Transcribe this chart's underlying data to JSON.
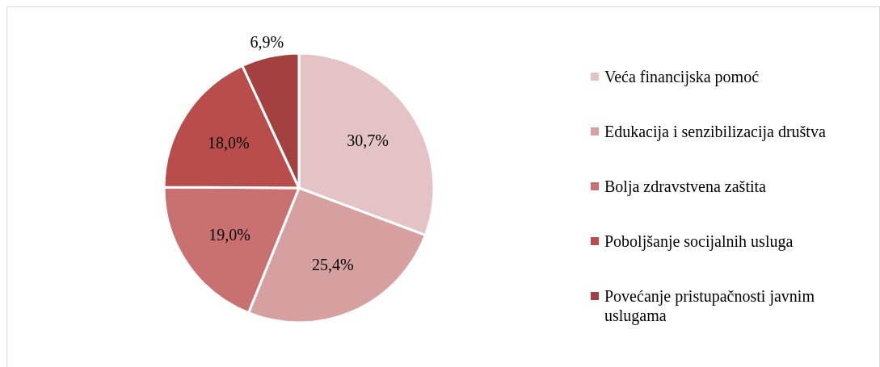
{
  "chart_data": {
    "type": "pie",
    "categories": [
      "Veća financijska pomoć",
      "Edukacija i senzibilizacija društva",
      "Bolja zdravstvena zaštita",
      "Poboljšanje socijalnih usluga",
      "Povećanje pristupačnosti javnim uslugama"
    ],
    "values": [
      30.7,
      25.4,
      19.0,
      18.0,
      6.9
    ],
    "colors": [
      "#e3c3c5",
      "#d6a0a1",
      "#c87170",
      "#b94d4b",
      "#a34141"
    ],
    "value_labels": [
      "30,7%",
      "25,4%",
      "19,0%",
      "18,0%",
      "6,9%"
    ],
    "legend": "right"
  }
}
